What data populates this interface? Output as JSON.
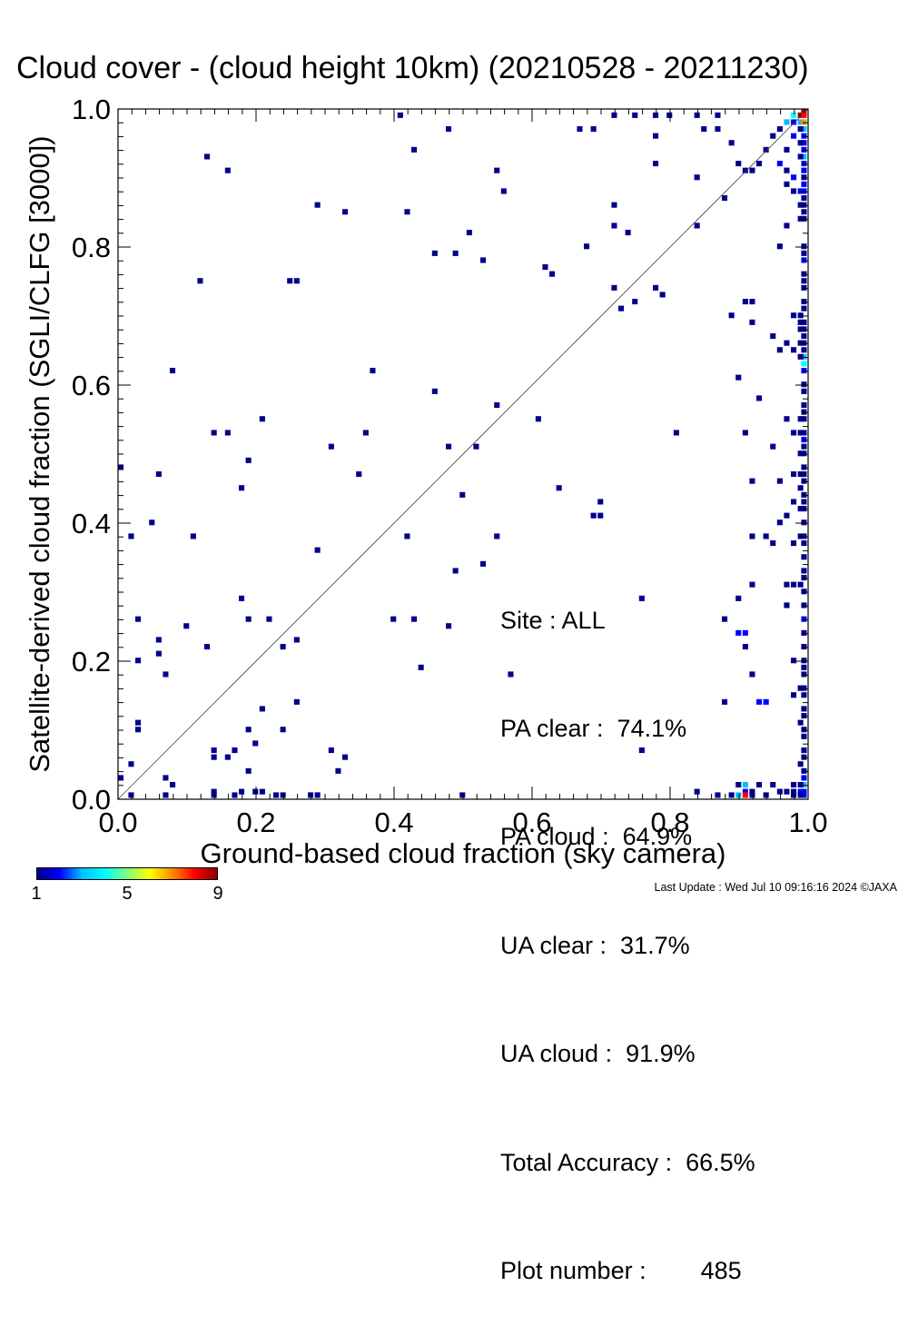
{
  "title": "Cloud cover - (cloud height 10km)  (20210528 - 20211230)",
  "footer": "Last Update : Wed Jul 10 09:16:16 2024  ©JAXA",
  "stats": {
    "site": "Site : ALL",
    "pa_clear": "PA clear :  74.1%",
    "pa_cloud": "PA cloud :  64.9%",
    "ua_clear": "UA clear :  31.7%",
    "ua_cloud": "UA cloud :  91.9%",
    "total_accuracy": "Total Accuracy :  66.5%",
    "plot_number": "Plot number :        485"
  },
  "colorbar": {
    "tick_labels": [
      "1",
      "5",
      "9"
    ],
    "min": 1,
    "max": 9,
    "colors": [
      "#00008b",
      "#0000ff",
      "#00bfff",
      "#00ffff",
      "#7fff7f",
      "#ffff00",
      "#ff8c00",
      "#ff0000",
      "#8b0000"
    ]
  },
  "chart_data": {
    "type": "heatmap",
    "title": "Cloud cover - (cloud height 10km)  (20210528 - 20211230)",
    "xlabel": "Ground-based cloud fraction (sky camera)",
    "ylabel": "Satellite-derived cloud fraction (SGLI/CLFG [3000])",
    "xlim": [
      0.0,
      1.0
    ],
    "ylim": [
      0.0,
      1.0
    ],
    "x_ticks": [
      "0.0",
      "0.2",
      "0.4",
      "0.6",
      "0.8",
      "1.0"
    ],
    "y_ticks": [
      "0.0",
      "0.2",
      "0.4",
      "0.6",
      "0.8",
      "1.0"
    ],
    "bin_size": 0.01,
    "reference_line": "1:1 diagonal",
    "grid": false,
    "points": [
      [
        0.13,
        0.93,
        1
      ],
      [
        0.16,
        0.91,
        1
      ],
      [
        0.43,
        0.94,
        1
      ],
      [
        0.48,
        0.97,
        1
      ],
      [
        0.41,
        0.99,
        1
      ],
      [
        0.29,
        0.86,
        1
      ],
      [
        0.33,
        0.85,
        1
      ],
      [
        0.42,
        0.85,
        1
      ],
      [
        0.55,
        0.91,
        1
      ],
      [
        0.56,
        0.88,
        1
      ],
      [
        0.51,
        0.82,
        1
      ],
      [
        0.46,
        0.79,
        1
      ],
      [
        0.49,
        0.79,
        1
      ],
      [
        0.53,
        0.78,
        1
      ],
      [
        0.12,
        0.75,
        1
      ],
      [
        0.25,
        0.75,
        1
      ],
      [
        0.26,
        0.75,
        1
      ],
      [
        0.08,
        0.62,
        1
      ],
      [
        0.37,
        0.62,
        1
      ],
      [
        0.46,
        0.59,
        1
      ],
      [
        0.55,
        0.57,
        1
      ],
      [
        0.61,
        0.55,
        1
      ],
      [
        0.21,
        0.55,
        1
      ],
      [
        0.14,
        0.53,
        1
      ],
      [
        0.16,
        0.53,
        1
      ],
      [
        0.36,
        0.53,
        1
      ],
      [
        0.31,
        0.51,
        1
      ],
      [
        0.48,
        0.51,
        1
      ],
      [
        0.52,
        0.51,
        1
      ],
      [
        0.19,
        0.49,
        1
      ],
      [
        0.0,
        0.48,
        1
      ],
      [
        0.06,
        0.47,
        1
      ],
      [
        0.35,
        0.47,
        1
      ],
      [
        0.18,
        0.45,
        1
      ],
      [
        0.5,
        0.44,
        1
      ],
      [
        0.64,
        0.45,
        1
      ],
      [
        0.7,
        0.43,
        1
      ],
      [
        0.05,
        0.4,
        1
      ],
      [
        0.02,
        0.38,
        1
      ],
      [
        0.11,
        0.38,
        1
      ],
      [
        0.42,
        0.38,
        1
      ],
      [
        0.55,
        0.38,
        1
      ],
      [
        0.29,
        0.36,
        1
      ],
      [
        0.53,
        0.34,
        1
      ],
      [
        0.49,
        0.33,
        1
      ],
      [
        0.18,
        0.29,
        1
      ],
      [
        0.03,
        0.26,
        1
      ],
      [
        0.19,
        0.26,
        1
      ],
      [
        0.22,
        0.26,
        1
      ],
      [
        0.4,
        0.26,
        1
      ],
      [
        0.43,
        0.26,
        1
      ],
      [
        0.1,
        0.25,
        1
      ],
      [
        0.48,
        0.25,
        1
      ],
      [
        0.06,
        0.23,
        1
      ],
      [
        0.26,
        0.23,
        1
      ],
      [
        0.13,
        0.22,
        1
      ],
      [
        0.24,
        0.22,
        1
      ],
      [
        0.06,
        0.21,
        1
      ],
      [
        0.03,
        0.2,
        1
      ],
      [
        0.44,
        0.19,
        1
      ],
      [
        0.07,
        0.18,
        1
      ],
      [
        0.57,
        0.18,
        1
      ],
      [
        0.26,
        0.14,
        1
      ],
      [
        0.21,
        0.13,
        1
      ],
      [
        0.03,
        0.11,
        1
      ],
      [
        0.03,
        0.1,
        1
      ],
      [
        0.19,
        0.1,
        1
      ],
      [
        0.24,
        0.1,
        1
      ],
      [
        0.2,
        0.08,
        1
      ],
      [
        0.14,
        0.07,
        1
      ],
      [
        0.17,
        0.07,
        1
      ],
      [
        0.31,
        0.07,
        1
      ],
      [
        0.14,
        0.06,
        1
      ],
      [
        0.16,
        0.06,
        1
      ],
      [
        0.33,
        0.06,
        1
      ],
      [
        0.02,
        0.05,
        1
      ],
      [
        0.19,
        0.04,
        1
      ],
      [
        0.32,
        0.04,
        1
      ],
      [
        0.0,
        0.03,
        1
      ],
      [
        0.07,
        0.03,
        1
      ],
      [
        0.08,
        0.02,
        1
      ],
      [
        0.14,
        0.01,
        1
      ],
      [
        0.18,
        0.01,
        1
      ],
      [
        0.2,
        0.01,
        1
      ],
      [
        0.21,
        0.01,
        1
      ],
      [
        0.23,
        0.0,
        1
      ],
      [
        0.24,
        0.0,
        1
      ],
      [
        0.28,
        0.0,
        1
      ],
      [
        0.14,
        0.0,
        1
      ],
      [
        0.07,
        0.0,
        1
      ],
      [
        0.02,
        0.0,
        1
      ],
      [
        0.17,
        0.0,
        1
      ],
      [
        0.29,
        0.0,
        1
      ],
      [
        0.5,
        0.0,
        1
      ],
      [
        0.67,
        0.97,
        1
      ],
      [
        0.69,
        0.97,
        1
      ],
      [
        0.72,
        0.99,
        1
      ],
      [
        0.75,
        0.99,
        1
      ],
      [
        0.78,
        0.99,
        1
      ],
      [
        0.8,
        0.99,
        1
      ],
      [
        0.84,
        0.99,
        1
      ],
      [
        0.87,
        0.99,
        1
      ],
      [
        0.78,
        0.96,
        1
      ],
      [
        0.85,
        0.97,
        1
      ],
      [
        0.87,
        0.97,
        1
      ],
      [
        0.89,
        0.95,
        1
      ],
      [
        0.78,
        0.92,
        1
      ],
      [
        0.84,
        0.9,
        1
      ],
      [
        0.72,
        0.86,
        1
      ],
      [
        0.88,
        0.87,
        1
      ],
      [
        0.72,
        0.83,
        1
      ],
      [
        0.74,
        0.82,
        1
      ],
      [
        0.84,
        0.83,
        1
      ],
      [
        0.68,
        0.8,
        1
      ],
      [
        0.62,
        0.77,
        1
      ],
      [
        0.63,
        0.76,
        1
      ],
      [
        0.72,
        0.74,
        1
      ],
      [
        0.78,
        0.74,
        1
      ],
      [
        0.79,
        0.73,
        1
      ],
      [
        0.75,
        0.72,
        1
      ],
      [
        0.73,
        0.71,
        1
      ],
      [
        0.89,
        0.7,
        1
      ],
      [
        0.91,
        0.72,
        1
      ],
      [
        0.92,
        0.72,
        1
      ],
      [
        0.92,
        0.69,
        1
      ],
      [
        0.9,
        0.61,
        1
      ],
      [
        0.93,
        0.58,
        1
      ],
      [
        0.81,
        0.53,
        1
      ],
      [
        0.91,
        0.53,
        1
      ],
      [
        0.95,
        0.51,
        1
      ],
      [
        0.92,
        0.46,
        1
      ],
      [
        0.7,
        0.41,
        1
      ],
      [
        0.69,
        0.41,
        1
      ],
      [
        0.92,
        0.38,
        1
      ],
      [
        0.94,
        0.38,
        1
      ],
      [
        0.95,
        0.37,
        1
      ],
      [
        0.92,
        0.31,
        1
      ],
      [
        0.97,
        0.31,
        1
      ],
      [
        0.76,
        0.29,
        1
      ],
      [
        0.9,
        0.29,
        1
      ],
      [
        0.88,
        0.26,
        1
      ],
      [
        0.9,
        0.24,
        2
      ],
      [
        0.91,
        0.24,
        2
      ],
      [
        0.91,
        0.22,
        1
      ],
      [
        0.92,
        0.18,
        1
      ],
      [
        0.88,
        0.14,
        1
      ],
      [
        0.93,
        0.14,
        2
      ],
      [
        0.94,
        0.14,
        2
      ],
      [
        0.76,
        0.07,
        1
      ],
      [
        0.84,
        0.01,
        1
      ],
      [
        0.87,
        0.0,
        1
      ],
      [
        0.89,
        0.0,
        1
      ],
      [
        0.9,
        0.92,
        1
      ],
      [
        0.91,
        0.91,
        1
      ],
      [
        0.92,
        0.91,
        1
      ],
      [
        0.93,
        0.92,
        1
      ],
      [
        0.94,
        0.94,
        1
      ],
      [
        0.95,
        0.96,
        1
      ],
      [
        0.96,
        0.97,
        1
      ],
      [
        0.97,
        0.98,
        3
      ],
      [
        0.98,
        0.99,
        4
      ],
      [
        0.98,
        0.98,
        2
      ],
      [
        0.99,
        0.99,
        9
      ],
      [
        1.0,
        1.0,
        9
      ],
      [
        1.0,
        0.99,
        8
      ],
      [
        0.99,
        0.98,
        3
      ],
      [
        0.98,
        0.96,
        2
      ],
      [
        0.97,
        0.94,
        1
      ],
      [
        0.96,
        0.92,
        2
      ],
      [
        0.97,
        0.91,
        1
      ],
      [
        0.98,
        0.9,
        2
      ],
      [
        0.97,
        0.89,
        1
      ],
      [
        1.0,
        0.98,
        7
      ],
      [
        1.0,
        0.97,
        3
      ],
      [
        1.0,
        0.96,
        2
      ],
      [
        1.0,
        0.95,
        2
      ],
      [
        1.0,
        0.94,
        2
      ],
      [
        1.0,
        0.93,
        3
      ],
      [
        1.0,
        0.92,
        2
      ],
      [
        1.0,
        0.91,
        2
      ],
      [
        1.0,
        0.9,
        1
      ],
      [
        1.0,
        0.89,
        2
      ],
      [
        1.0,
        0.88,
        2
      ],
      [
        1.0,
        0.87,
        1
      ],
      [
        1.0,
        0.86,
        1
      ],
      [
        1.0,
        0.85,
        1
      ],
      [
        1.0,
        0.84,
        1
      ],
      [
        1.0,
        0.8,
        1
      ],
      [
        1.0,
        0.79,
        1
      ],
      [
        1.0,
        0.78,
        2
      ],
      [
        1.0,
        0.76,
        1
      ],
      [
        1.0,
        0.75,
        1
      ],
      [
        1.0,
        0.74,
        1
      ],
      [
        1.0,
        0.72,
        1
      ],
      [
        1.0,
        0.71,
        1
      ],
      [
        1.0,
        0.69,
        1
      ],
      [
        1.0,
        0.68,
        1
      ],
      [
        1.0,
        0.67,
        1
      ],
      [
        1.0,
        0.66,
        1
      ],
      [
        1.0,
        0.65,
        1
      ],
      [
        1.0,
        0.64,
        3
      ],
      [
        1.0,
        0.63,
        4
      ],
      [
        1.0,
        0.62,
        2
      ],
      [
        1.0,
        0.6,
        1
      ],
      [
        1.0,
        0.59,
        1
      ],
      [
        1.0,
        0.57,
        1
      ],
      [
        1.0,
        0.56,
        1
      ],
      [
        1.0,
        0.55,
        1
      ],
      [
        1.0,
        0.53,
        1
      ],
      [
        1.0,
        0.52,
        2
      ],
      [
        1.0,
        0.51,
        1
      ],
      [
        1.0,
        0.5,
        1
      ],
      [
        1.0,
        0.48,
        1
      ],
      [
        1.0,
        0.47,
        1
      ],
      [
        1.0,
        0.46,
        1
      ],
      [
        1.0,
        0.44,
        1
      ],
      [
        1.0,
        0.43,
        1
      ],
      [
        1.0,
        0.42,
        1
      ],
      [
        1.0,
        0.4,
        1
      ],
      [
        1.0,
        0.38,
        1
      ],
      [
        1.0,
        0.37,
        1
      ],
      [
        1.0,
        0.35,
        1
      ],
      [
        1.0,
        0.33,
        1
      ],
      [
        1.0,
        0.32,
        1
      ],
      [
        1.0,
        0.3,
        1
      ],
      [
        1.0,
        0.28,
        1
      ],
      [
        1.0,
        0.26,
        2
      ],
      [
        1.0,
        0.24,
        1
      ],
      [
        1.0,
        0.22,
        1
      ],
      [
        1.0,
        0.2,
        1
      ],
      [
        1.0,
        0.19,
        1
      ],
      [
        1.0,
        0.18,
        1
      ],
      [
        1.0,
        0.16,
        1
      ],
      [
        1.0,
        0.15,
        1
      ],
      [
        1.0,
        0.13,
        1
      ],
      [
        1.0,
        0.12,
        1
      ],
      [
        1.0,
        0.1,
        1
      ],
      [
        1.0,
        0.09,
        1
      ],
      [
        1.0,
        0.07,
        1
      ],
      [
        1.0,
        0.06,
        1
      ],
      [
        1.0,
        0.04,
        1
      ],
      [
        1.0,
        0.03,
        2
      ],
      [
        1.0,
        0.02,
        3
      ],
      [
        1.0,
        0.01,
        2
      ],
      [
        1.0,
        0.0,
        2
      ],
      [
        0.99,
        0.97,
        1
      ],
      [
        0.99,
        0.95,
        1
      ],
      [
        0.99,
        0.93,
        1
      ],
      [
        0.99,
        0.88,
        2
      ],
      [
        0.99,
        0.86,
        1
      ],
      [
        0.99,
        0.84,
        1
      ],
      [
        0.99,
        0.7,
        1
      ],
      [
        0.99,
        0.69,
        1
      ],
      [
        0.99,
        0.68,
        1
      ],
      [
        0.99,
        0.66,
        1
      ],
      [
        0.99,
        0.64,
        1
      ],
      [
        0.99,
        0.55,
        1
      ],
      [
        0.99,
        0.53,
        1
      ],
      [
        0.99,
        0.5,
        1
      ],
      [
        0.99,
        0.47,
        1
      ],
      [
        0.99,
        0.45,
        1
      ],
      [
        0.99,
        0.42,
        1
      ],
      [
        0.99,
        0.38,
        1
      ],
      [
        0.99,
        0.31,
        1
      ],
      [
        0.99,
        0.16,
        1
      ],
      [
        0.99,
        0.11,
        1
      ],
      [
        0.99,
        0.05,
        1
      ],
      [
        0.99,
        0.02,
        1
      ],
      [
        0.99,
        0.01,
        2
      ],
      [
        0.99,
        0.0,
        1
      ],
      [
        0.98,
        0.88,
        1
      ],
      [
        0.98,
        0.7,
        1
      ],
      [
        0.98,
        0.65,
        1
      ],
      [
        0.98,
        0.53,
        1
      ],
      [
        0.98,
        0.47,
        1
      ],
      [
        0.98,
        0.43,
        1
      ],
      [
        0.98,
        0.37,
        1
      ],
      [
        0.98,
        0.31,
        1
      ],
      [
        0.98,
        0.2,
        1
      ],
      [
        0.98,
        0.15,
        1
      ],
      [
        0.98,
        0.02,
        1
      ],
      [
        0.98,
        0.01,
        1
      ],
      [
        0.98,
        0.0,
        1
      ],
      [
        0.97,
        0.83,
        1
      ],
      [
        0.97,
        0.66,
        1
      ],
      [
        0.97,
        0.55,
        1
      ],
      [
        0.97,
        0.41,
        1
      ],
      [
        0.97,
        0.28,
        1
      ],
      [
        0.97,
        0.01,
        1
      ],
      [
        0.96,
        0.8,
        1
      ],
      [
        0.96,
        0.65,
        1
      ],
      [
        0.96,
        0.46,
        1
      ],
      [
        0.96,
        0.4,
        1
      ],
      [
        0.96,
        0.01,
        1
      ],
      [
        0.95,
        0.67,
        1
      ],
      [
        0.95,
        0.02,
        1
      ],
      [
        0.91,
        0.02,
        3
      ],
      [
        0.91,
        0.01,
        2
      ],
      [
        0.9,
        0.02,
        1
      ],
      [
        0.9,
        0.0,
        3
      ],
      [
        0.91,
        0.0,
        8
      ],
      [
        0.92,
        0.01,
        1
      ],
      [
        0.93,
        0.02,
        1
      ],
      [
        0.94,
        0.0,
        1
      ],
      [
        0.92,
        0.0,
        1
      ]
    ]
  }
}
